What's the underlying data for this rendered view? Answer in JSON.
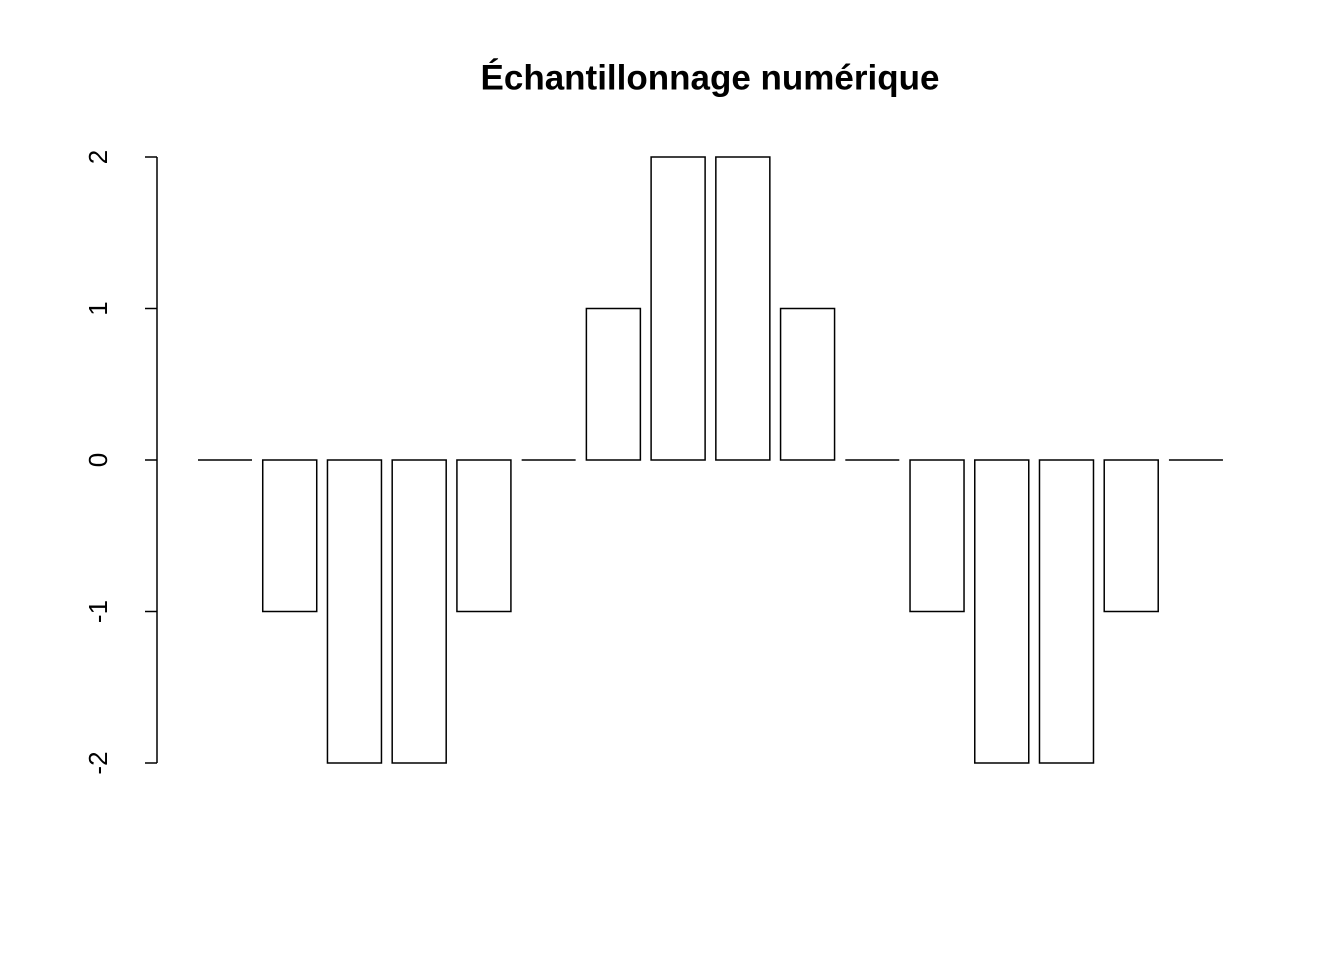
{
  "chart_data": {
    "type": "bar",
    "title": "Échantillonnage numérique",
    "values": [
      0,
      -1,
      -2,
      -2,
      -1,
      0,
      1,
      2,
      2,
      1,
      0,
      -1,
      -2,
      -2,
      -1,
      0
    ],
    "color": "#ffffff",
    "edgecolor": "#000000",
    "ylim": [
      -2,
      2
    ],
    "yticks": [
      -2,
      -1,
      0,
      1,
      2
    ],
    "grid": false
  }
}
